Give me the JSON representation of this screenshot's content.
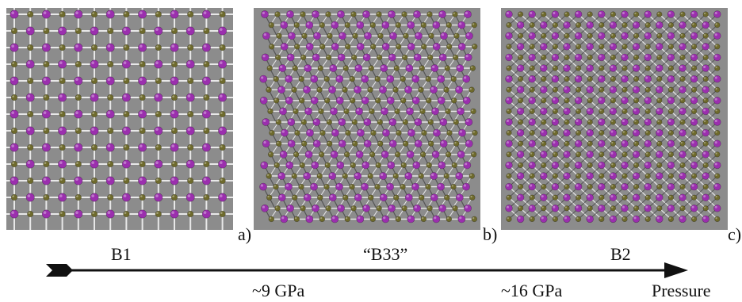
{
  "panels": [
    {
      "id": "a",
      "letter": "a)",
      "phase": "B1"
    },
    {
      "id": "b",
      "letter": "b)",
      "phase": "“B33”"
    },
    {
      "id": "c",
      "letter": "c)",
      "phase": "B2"
    }
  ],
  "axis": {
    "label": "Pressure",
    "transitions": [
      "~9 GPa",
      "~16 GPa"
    ]
  },
  "colors": {
    "background": "#8c8c8c",
    "atom_large": "#9b2fae",
    "atom_small": "#6e6a2c",
    "bond": "#e8e8e8"
  }
}
